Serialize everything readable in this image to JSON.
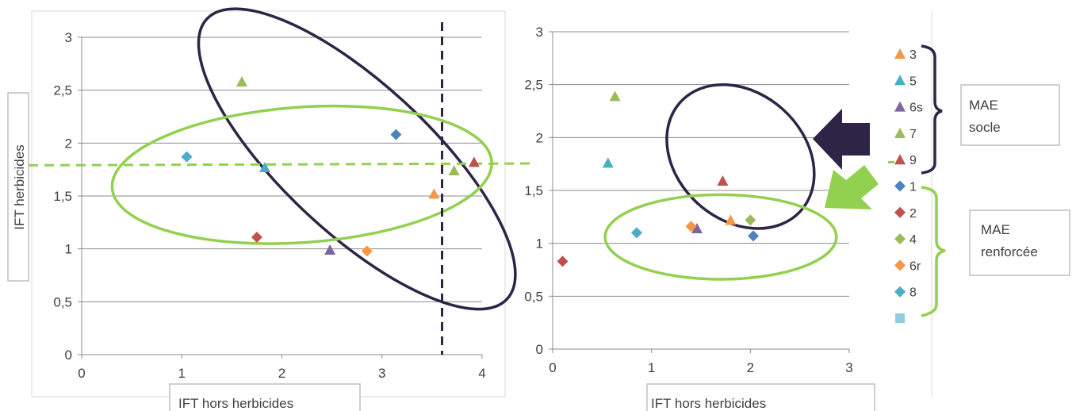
{
  "chart_data": [
    {
      "type": "scatter",
      "xlabel": "IFT hors herbicides",
      "ylabel": "IFT  herbicides",
      "xlim": [
        0,
        4
      ],
      "ylim": [
        0,
        3
      ],
      "xticks": [
        0,
        1,
        2,
        3,
        4
      ],
      "yticks": [
        0,
        0.5,
        1,
        1.5,
        2,
        2.5,
        3
      ],
      "xtick_labels": [
        "0",
        "1",
        "2",
        "3",
        "4"
      ],
      "ytick_labels": [
        "0",
        "0,5",
        "1",
        "1,5",
        "2",
        "2,5",
        "3"
      ],
      "grid": "horizontal",
      "series": [
        {
          "name": "3",
          "marker": "triangle",
          "color": "#f79646",
          "points": [
            [
              3.52,
              1.52
            ]
          ]
        },
        {
          "name": "5",
          "marker": "triangle",
          "color": "#4bacc6",
          "points": [
            [
              1.83,
              1.77
            ]
          ]
        },
        {
          "name": "6s",
          "marker": "triangle",
          "color": "#8064a2",
          "points": [
            [
              2.48,
              0.99
            ]
          ]
        },
        {
          "name": "7",
          "marker": "triangle",
          "color": "#9bbb59",
          "points": [
            [
              1.6,
              2.58
            ],
            [
              3.72,
              1.74
            ]
          ]
        },
        {
          "name": "9",
          "marker": "triangle",
          "color": "#c0504d",
          "points": [
            [
              3.92,
              1.82
            ]
          ]
        },
        {
          "name": "1",
          "marker": "diamond",
          "color": "#4f81bd",
          "points": [
            [
              3.14,
              2.08
            ]
          ]
        },
        {
          "name": "2",
          "marker": "diamond",
          "color": "#c0504d",
          "points": [
            [
              1.75,
              1.11
            ]
          ]
        },
        {
          "name": "4",
          "marker": "diamond",
          "color": "#9bbb59",
          "points": []
        },
        {
          "name": "6r",
          "marker": "diamond",
          "color": "#f79646",
          "points": [
            [
              2.85,
              0.98
            ]
          ]
        },
        {
          "name": "8",
          "marker": "diamond",
          "color": "#4bacc6",
          "points": [
            [
              1.05,
              1.87
            ]
          ]
        }
      ],
      "reference_lines": {
        "vertical_x": 3.6,
        "horizontal_y": 1.79
      },
      "ellipses": [
        {
          "color": "#2e2446",
          "cx": 2.75,
          "cy": 1.85,
          "rx": 2.05,
          "ry": 0.7,
          "rotation_deg": 43
        },
        {
          "color": "#92d050",
          "cx": 2.2,
          "cy": 1.7,
          "rx": 1.9,
          "ry": 0.64,
          "rotation_deg": -4
        }
      ]
    },
    {
      "type": "scatter",
      "xlabel": "IFT hors herbicides",
      "ylabel": "",
      "xlim": [
        0,
        3
      ],
      "ylim": [
        0,
        3
      ],
      "xticks": [
        0,
        1,
        2,
        3
      ],
      "yticks": [
        0,
        0.5,
        1,
        1.5,
        2,
        2.5,
        3
      ],
      "xtick_labels": [
        "0",
        "1",
        "2",
        "3"
      ],
      "ytick_labels": [
        "0",
        "0,5",
        "1",
        "1,5",
        "2",
        "2,5",
        "3"
      ],
      "grid": "horizontal",
      "legend": "right",
      "series": [
        {
          "name": "3",
          "marker": "triangle",
          "color": "#f79646",
          "points": [
            [
              1.8,
              1.22
            ]
          ]
        },
        {
          "name": "5",
          "marker": "triangle",
          "color": "#4bacc6",
          "points": [
            [
              0.56,
              1.76
            ]
          ]
        },
        {
          "name": "6s",
          "marker": "triangle",
          "color": "#8064a2",
          "points": [
            [
              1.46,
              1.14
            ]
          ]
        },
        {
          "name": "7",
          "marker": "triangle",
          "color": "#9bbb59",
          "points": [
            [
              0.63,
              2.39
            ]
          ]
        },
        {
          "name": "9",
          "marker": "triangle",
          "color": "#c0504d",
          "points": [
            [
              1.72,
              1.59
            ]
          ]
        },
        {
          "name": "1",
          "marker": "diamond",
          "color": "#4f81bd",
          "points": [
            [
              2.03,
              1.07
            ]
          ]
        },
        {
          "name": "2",
          "marker": "diamond",
          "color": "#c0504d",
          "points": [
            [
              0.1,
              0.83
            ]
          ]
        },
        {
          "name": "4",
          "marker": "diamond",
          "color": "#9bbb59",
          "points": [
            [
              2.0,
              1.22
            ]
          ]
        },
        {
          "name": "6r",
          "marker": "diamond",
          "color": "#f79646",
          "points": [
            [
              1.4,
              1.16
            ]
          ]
        },
        {
          "name": "8",
          "marker": "diamond",
          "color": "#4bacc6",
          "points": [
            [
              0.85,
              1.1
            ]
          ]
        },
        {
          "name": "",
          "marker": "square",
          "color": "#93cddd",
          "points": []
        }
      ],
      "ellipses": [
        {
          "color": "#2e2446",
          "cx": 1.9,
          "cy": 1.82,
          "rx": 0.82,
          "ry": 0.6,
          "rotation_deg": 42
        },
        {
          "color": "#92d050",
          "cx": 1.7,
          "cy": 1.06,
          "rx": 1.17,
          "ry": 0.4,
          "rotation_deg": 0
        }
      ]
    }
  ],
  "annotations": {
    "mae_socle": [
      "MAE",
      "socle"
    ],
    "mae_renforcee": [
      "MAE",
      "renforcée"
    ]
  },
  "colors": {
    "dark_accent": "#2e2446",
    "green_accent": "#92d050",
    "grid": "#8c8c8c"
  }
}
